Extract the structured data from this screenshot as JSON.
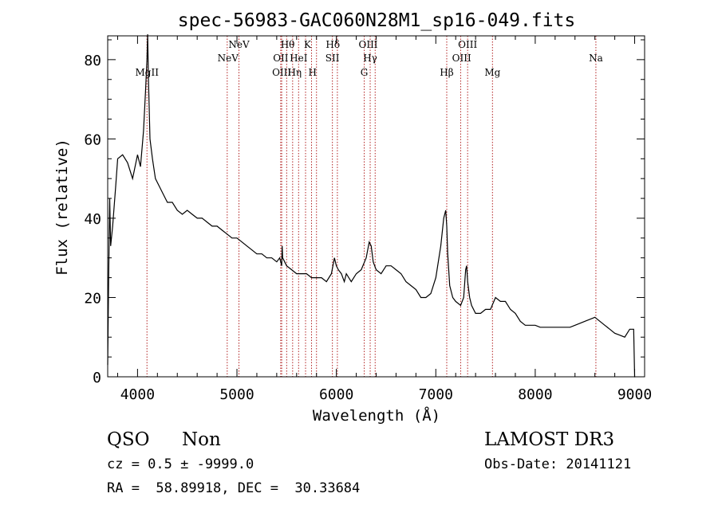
{
  "chart_data": {
    "type": "line",
    "title": "spec-56983-GAC060N28M1_sp16-049.fits",
    "xlabel": "Wavelength (Å)",
    "ylabel": "Flux (relative)",
    "xlim": [
      3700,
      9100
    ],
    "ylim": [
      0,
      86
    ],
    "xticks": [
      4000,
      5000,
      6000,
      7000,
      8000,
      9000
    ],
    "yticks": [
      0,
      20,
      40,
      60,
      80
    ],
    "xtick_labels": [
      "4000",
      "5000",
      "6000",
      "7000",
      "8000",
      "9000"
    ],
    "ytick_labels": [
      "0",
      "20",
      "40",
      "60",
      "80"
    ],
    "grid": false,
    "series": [
      {
        "name": "spectrum",
        "color": "#000000",
        "x": [
          3700,
          3710,
          3720,
          3730,
          3750,
          3780,
          3800,
          3850,
          3900,
          3950,
          4000,
          4030,
          4060,
          4080,
          4095,
          4102,
          4110,
          4125,
          4150,
          4180,
          4220,
          4260,
          4300,
          4350,
          4400,
          4450,
          4500,
          4550,
          4600,
          4650,
          4700,
          4750,
          4800,
          4850,
          4900,
          4950,
          5000,
          5050,
          5100,
          5150,
          5200,
          5250,
          5300,
          5350,
          5400,
          5430,
          5450,
          5455,
          5460,
          5500,
          5550,
          5600,
          5650,
          5700,
          5750,
          5800,
          5850,
          5900,
          5950,
          5980,
          6000,
          6020,
          6050,
          6080,
          6100,
          6150,
          6200,
          6250,
          6300,
          6330,
          6350,
          6370,
          6400,
          6450,
          6500,
          6550,
          6600,
          6650,
          6700,
          6750,
          6800,
          6850,
          6900,
          6950,
          7000,
          7050,
          7080,
          7100,
          7110,
          7120,
          7140,
          7170,
          7200,
          7250,
          7280,
          7300,
          7310,
          7320,
          7340,
          7360,
          7400,
          7450,
          7500,
          7550,
          7600,
          7650,
          7700,
          7750,
          7800,
          7850,
          7900,
          7950,
          8000,
          8050,
          8100,
          8150,
          8200,
          8250,
          8300,
          8350,
          8400,
          8450,
          8500,
          8550,
          8600,
          8650,
          8700,
          8750,
          8800,
          8850,
          8900,
          8950,
          8990,
          9000,
          9005
        ],
        "values": [
          3,
          25,
          45,
          33,
          38,
          48,
          55,
          56,
          54,
          50,
          56,
          53,
          62,
          72,
          80,
          87,
          75,
          60,
          55,
          50,
          48,
          46,
          44,
          44,
          42,
          41,
          42,
          41,
          40,
          40,
          39,
          38,
          38,
          37,
          36,
          35,
          35,
          34,
          33,
          32,
          31,
          31,
          30,
          30,
          29,
          30,
          28,
          33,
          30,
          28,
          27,
          26,
          26,
          26,
          25,
          25,
          25,
          24,
          26,
          30,
          28,
          27,
          26,
          24,
          26,
          24,
          26,
          27,
          30,
          34,
          33,
          29,
          27,
          26,
          28,
          28,
          27,
          26,
          24,
          23,
          22,
          20,
          20,
          21,
          25,
          33,
          40,
          42,
          38,
          31,
          23,
          20,
          19,
          18,
          20,
          27,
          28,
          24,
          20,
          18,
          16,
          16,
          17,
          17,
          20,
          19,
          19,
          17,
          16,
          14,
          13,
          13,
          13,
          12.5,
          12.5,
          12.5,
          12.5,
          12.5,
          12.5,
          12.5,
          13,
          13.5,
          14,
          14.5,
          15,
          14,
          13,
          12,
          11,
          10.5,
          10,
          12,
          12,
          0,
          0
        ]
      }
    ],
    "line_markers": [
      {
        "name": "MgII",
        "x": 4095,
        "row": 3
      },
      {
        "name": "NeV",
        "x": 4910,
        "row": 2
      },
      {
        "name": "NeV",
        "x": 5020,
        "row": 1
      },
      {
        "name": "OII",
        "x": 5440,
        "row": 2
      },
      {
        "name": "OIII",
        "x": 5450,
        "row": 3
      },
      {
        "name": "Hθ",
        "x": 5510,
        "row": 1
      },
      {
        "name": "Hη",
        "x": 5580,
        "row": 3
      },
      {
        "name": "HeI",
        "x": 5620,
        "row": 2
      },
      {
        "name": "K",
        "x": 5710,
        "row": 1
      },
      {
        "name": "H",
        "x": 5760,
        "row": 3
      },
      {
        "name": "Hδ",
        "x": 5965,
        "row": 1
      },
      {
        "name": "SII",
        "x": 5960,
        "row": 2
      },
      {
        "name": "OIII",
        "x": 6320,
        "row": 1
      },
      {
        "name": "Hγ",
        "x": 6340,
        "row": 2
      },
      {
        "name": "G",
        "x": 6280,
        "row": 3
      },
      {
        "name": "OIII",
        "x": 7320,
        "row": 1
      },
      {
        "name": "OIII",
        "x": 7260,
        "row": 2
      },
      {
        "name": "Hβ",
        "x": 7110,
        "row": 3
      },
      {
        "name": "Mg",
        "x": 7570,
        "row": 3
      },
      {
        "name": "Na",
        "x": 8610,
        "row": 2
      }
    ],
    "marker_lines": [
      4095,
      4902,
      5020,
      5440,
      5450,
      5500,
      5560,
      5620,
      5690,
      5750,
      5800,
      5960,
      6010,
      6280,
      6340,
      6390,
      7110,
      7250,
      7320,
      7570,
      8610
    ],
    "marker_color": "#b22222",
    "axis_color": "#000000"
  },
  "info": {
    "class": "QSO",
    "subclass": "Non",
    "cz": "cz = 0.5 ± -9999.0",
    "coords": "RA =  58.89918, DEC =  30.33684",
    "survey": "LAMOST DR3",
    "obs_date": "Obs-Date: 20141121"
  }
}
